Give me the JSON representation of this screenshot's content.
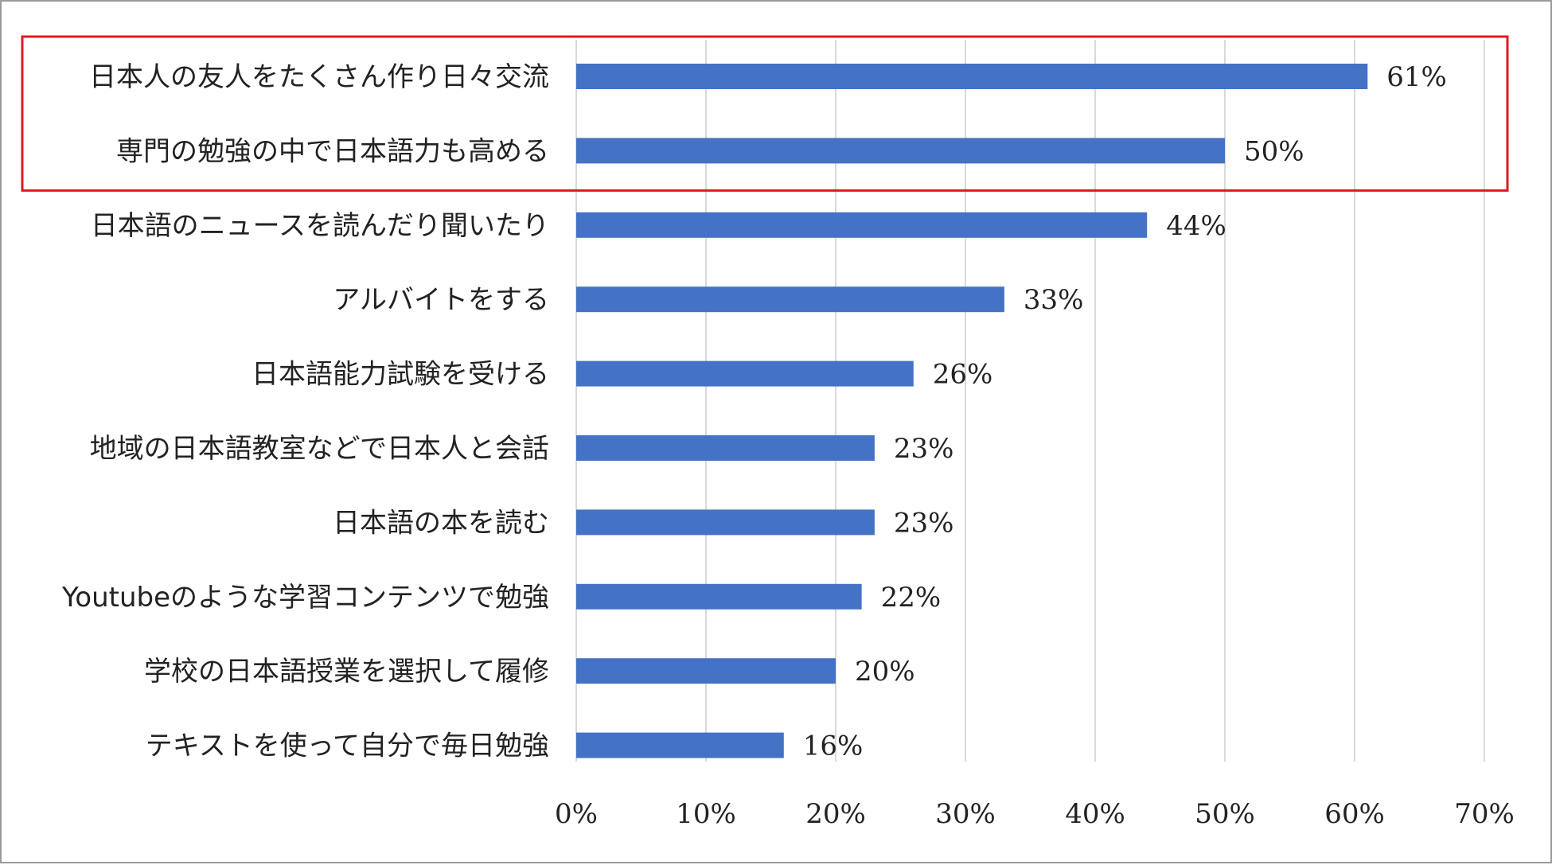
{
  "chart_data": {
    "type": "bar",
    "orientation": "horizontal",
    "title": "",
    "xlabel": "",
    "ylabel": "",
    "categories": [
      "日本人の友人をたくさん作り日々交流",
      "専門の勉強の中で日本語力も高める",
      "日本語のニュースを読んだり聞いたり",
      "アルバイトをする",
      "日本語能力試験を受ける",
      "地域の日本語教室などで日本人と会話",
      "日本語の本を読む",
      "Youtubeのような学習コンテンツで勉強",
      "学校の日本語授業を選択して履修",
      "テキストを使って自分で毎日勉強"
    ],
    "values": [
      61,
      50,
      44,
      33,
      26,
      23,
      23,
      22,
      20,
      16
    ],
    "value_labels": [
      "61%",
      "50%",
      "44%",
      "33%",
      "26%",
      "23%",
      "23%",
      "22%",
      "20%",
      "16%"
    ],
    "xlim": [
      0,
      70
    ],
    "x_ticks": [
      0,
      10,
      20,
      30,
      40,
      50,
      60,
      70
    ],
    "x_tick_labels": [
      "0%",
      "10%",
      "20%",
      "30%",
      "40%",
      "50%",
      "60%",
      "70%"
    ],
    "grid": "vertical",
    "highlight": {
      "categories": [
        0,
        1
      ],
      "color": "#e0191f"
    },
    "bar_color": "#4472c4",
    "grid_color": "#d9d9d9"
  }
}
